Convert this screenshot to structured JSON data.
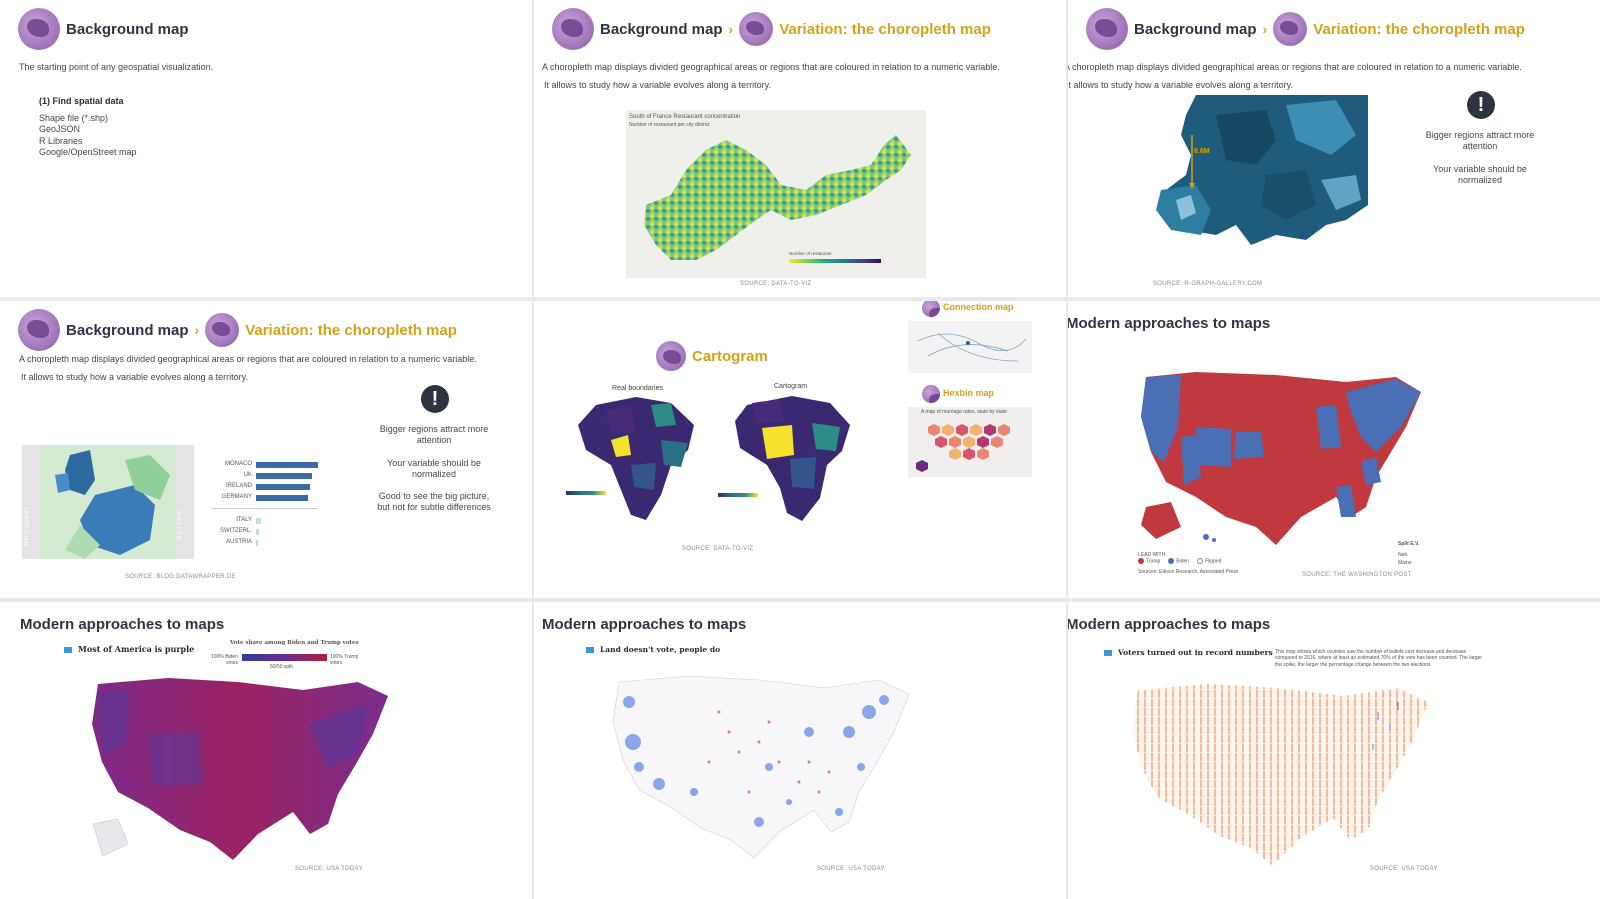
{
  "slides": {
    "s1": {
      "title": "Background map",
      "description": "The starting point of any geospatial visualization.",
      "list_heading": "(1) Find spatial data",
      "items": [
        "Shape file (*.shp)",
        "GeoJSON",
        "R Libraries",
        "Google/OpenStreet map"
      ]
    },
    "s2": {
      "title": "Background map",
      "variation": "Variation: the choropleth map",
      "desc1": "A choropleth map displays divided geographical areas or regions that are coloured in relation to a numeric variable.",
      "desc2": "It allows to study how a variable evolves along a territory.",
      "map_title": "South of France Restaurant concentration",
      "map_subtitle": "Number of restaurant per city district",
      "legend_title": "Number of restaurant",
      "source": "SOURCE: DATA-TO-VIZ"
    },
    "s3": {
      "title": "Background map",
      "variation": "Variation: the choropleth map",
      "desc1": "A choropleth map displays divided geographical areas or regions that are coloured in relation to a numeric variable.",
      "desc2": "It allows to study how a variable evolves along a territory.",
      "annotation": "6.6M",
      "note1": "Bigger regions attract more attention",
      "note2": "Your variable should be normalized",
      "source": "SOURCE: R-GRAPH-GALLERY.COM"
    },
    "s4": {
      "title": "Background map",
      "variation": "Variation: the choropleth map",
      "desc1": "A choropleth map displays divided geographical areas or regions that are coloured in relation to a numeric variable.",
      "desc2": "It allows to study how a variable evolves along a territory.",
      "label_left": "NOT IDEAL",
      "label_right": "BETTER",
      "countries": [
        "MONACO",
        "UK",
        "IRELAND",
        "GERMANY",
        "ITALY",
        "SWITZERL.",
        "AUSTRIA"
      ],
      "note1": "Bigger regions attract more attention",
      "note2": "Your variable should be normalized",
      "note3": "Good to see the big picture, but not for subtle differences",
      "source": "SOURCE: BLOG.DATAWRAPPER.DE"
    },
    "s5": {
      "title": "Cartogram",
      "label_real": "Real boundaries",
      "label_carto": "Cartogram",
      "connection_title": "Connection map",
      "hexbin_title": "Hexbin map",
      "hexbin_caption": "A map of marriage rates, state by state",
      "source": "SOURCE: DATA-TO-VIZ"
    },
    "s6": {
      "title": "Modern approaches to maps",
      "legend_lead": "LEAD WITH",
      "legend_items": [
        "Trump",
        "Biden",
        "Flipped"
      ],
      "split_title": "Split E.V.",
      "split_items": [
        "Neb.",
        "Maine"
      ],
      "sources_line": "Sources: Edison Research, Associated Press",
      "source": "SOURCE: THE WASHINGTON POST"
    },
    "s7": {
      "title": "Modern approaches to maps",
      "heading": "Most of America is purple",
      "scale_title": "Vote share among Biden and Trump votes",
      "scale_left": "100% Biden votes",
      "scale_right": "100% Trump votes",
      "scale_mid": "50/50 split",
      "source": "SOURCE: USA TODAY"
    },
    "s8": {
      "title": "Modern approaches to maps",
      "heading": "Land doesn't vote, people do",
      "source": "SOURCE: USA TODAY"
    },
    "s9": {
      "title": "Modern approaches to maps",
      "heading": "Voters turned out in record numbers",
      "caption": "This map shows which counties saw the number of ballots cast increase and decrease compared to 2016, where at least an estimated 70% of the vote has been counted. The larger the spike, the larger the percentage change between the two elections.",
      "source": "SOURCE: USA TODAY"
    }
  },
  "colors": {
    "accent": "#d4a21a",
    "title": "#333342",
    "republican": "#c0393f",
    "democrat": "#4a6fb5",
    "background": "#ffffff"
  }
}
